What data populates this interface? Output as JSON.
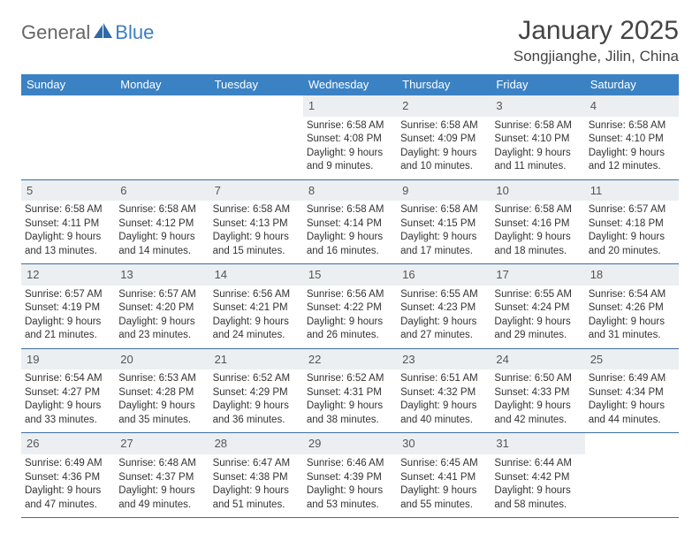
{
  "brand": {
    "part1": "General",
    "part2": "Blue"
  },
  "title": "January 2025",
  "location": "Songjianghe, Jilin, China",
  "colors": {
    "header_bg": "#3b82c4",
    "header_text": "#ffffff",
    "daynum_bg": "#eceff1",
    "row_border": "#3b6fa0",
    "text": "#333333",
    "brand_gray": "#666666",
    "brand_blue": "#3b7fc4"
  },
  "typography": {
    "title_fontsize": 30,
    "location_fontsize": 17,
    "dayheader_fontsize": 13,
    "body_fontsize": 11.5
  },
  "dayHeaders": [
    "Sunday",
    "Monday",
    "Tuesday",
    "Wednesday",
    "Thursday",
    "Friday",
    "Saturday"
  ],
  "weeks": [
    [
      {
        "num": "",
        "lines": []
      },
      {
        "num": "",
        "lines": []
      },
      {
        "num": "",
        "lines": []
      },
      {
        "num": "1",
        "lines": [
          "Sunrise: 6:58 AM",
          "Sunset: 4:08 PM",
          "Daylight: 9 hours",
          "and 9 minutes."
        ]
      },
      {
        "num": "2",
        "lines": [
          "Sunrise: 6:58 AM",
          "Sunset: 4:09 PM",
          "Daylight: 9 hours",
          "and 10 minutes."
        ]
      },
      {
        "num": "3",
        "lines": [
          "Sunrise: 6:58 AM",
          "Sunset: 4:10 PM",
          "Daylight: 9 hours",
          "and 11 minutes."
        ]
      },
      {
        "num": "4",
        "lines": [
          "Sunrise: 6:58 AM",
          "Sunset: 4:10 PM",
          "Daylight: 9 hours",
          "and 12 minutes."
        ]
      }
    ],
    [
      {
        "num": "5",
        "lines": [
          "Sunrise: 6:58 AM",
          "Sunset: 4:11 PM",
          "Daylight: 9 hours",
          "and 13 minutes."
        ]
      },
      {
        "num": "6",
        "lines": [
          "Sunrise: 6:58 AM",
          "Sunset: 4:12 PM",
          "Daylight: 9 hours",
          "and 14 minutes."
        ]
      },
      {
        "num": "7",
        "lines": [
          "Sunrise: 6:58 AM",
          "Sunset: 4:13 PM",
          "Daylight: 9 hours",
          "and 15 minutes."
        ]
      },
      {
        "num": "8",
        "lines": [
          "Sunrise: 6:58 AM",
          "Sunset: 4:14 PM",
          "Daylight: 9 hours",
          "and 16 minutes."
        ]
      },
      {
        "num": "9",
        "lines": [
          "Sunrise: 6:58 AM",
          "Sunset: 4:15 PM",
          "Daylight: 9 hours",
          "and 17 minutes."
        ]
      },
      {
        "num": "10",
        "lines": [
          "Sunrise: 6:58 AM",
          "Sunset: 4:16 PM",
          "Daylight: 9 hours",
          "and 18 minutes."
        ]
      },
      {
        "num": "11",
        "lines": [
          "Sunrise: 6:57 AM",
          "Sunset: 4:18 PM",
          "Daylight: 9 hours",
          "and 20 minutes."
        ]
      }
    ],
    [
      {
        "num": "12",
        "lines": [
          "Sunrise: 6:57 AM",
          "Sunset: 4:19 PM",
          "Daylight: 9 hours",
          "and 21 minutes."
        ]
      },
      {
        "num": "13",
        "lines": [
          "Sunrise: 6:57 AM",
          "Sunset: 4:20 PM",
          "Daylight: 9 hours",
          "and 23 minutes."
        ]
      },
      {
        "num": "14",
        "lines": [
          "Sunrise: 6:56 AM",
          "Sunset: 4:21 PM",
          "Daylight: 9 hours",
          "and 24 minutes."
        ]
      },
      {
        "num": "15",
        "lines": [
          "Sunrise: 6:56 AM",
          "Sunset: 4:22 PM",
          "Daylight: 9 hours",
          "and 26 minutes."
        ]
      },
      {
        "num": "16",
        "lines": [
          "Sunrise: 6:55 AM",
          "Sunset: 4:23 PM",
          "Daylight: 9 hours",
          "and 27 minutes."
        ]
      },
      {
        "num": "17",
        "lines": [
          "Sunrise: 6:55 AM",
          "Sunset: 4:24 PM",
          "Daylight: 9 hours",
          "and 29 minutes."
        ]
      },
      {
        "num": "18",
        "lines": [
          "Sunrise: 6:54 AM",
          "Sunset: 4:26 PM",
          "Daylight: 9 hours",
          "and 31 minutes."
        ]
      }
    ],
    [
      {
        "num": "19",
        "lines": [
          "Sunrise: 6:54 AM",
          "Sunset: 4:27 PM",
          "Daylight: 9 hours",
          "and 33 minutes."
        ]
      },
      {
        "num": "20",
        "lines": [
          "Sunrise: 6:53 AM",
          "Sunset: 4:28 PM",
          "Daylight: 9 hours",
          "and 35 minutes."
        ]
      },
      {
        "num": "21",
        "lines": [
          "Sunrise: 6:52 AM",
          "Sunset: 4:29 PM",
          "Daylight: 9 hours",
          "and 36 minutes."
        ]
      },
      {
        "num": "22",
        "lines": [
          "Sunrise: 6:52 AM",
          "Sunset: 4:31 PM",
          "Daylight: 9 hours",
          "and 38 minutes."
        ]
      },
      {
        "num": "23",
        "lines": [
          "Sunrise: 6:51 AM",
          "Sunset: 4:32 PM",
          "Daylight: 9 hours",
          "and 40 minutes."
        ]
      },
      {
        "num": "24",
        "lines": [
          "Sunrise: 6:50 AM",
          "Sunset: 4:33 PM",
          "Daylight: 9 hours",
          "and 42 minutes."
        ]
      },
      {
        "num": "25",
        "lines": [
          "Sunrise: 6:49 AM",
          "Sunset: 4:34 PM",
          "Daylight: 9 hours",
          "and 44 minutes."
        ]
      }
    ],
    [
      {
        "num": "26",
        "lines": [
          "Sunrise: 6:49 AM",
          "Sunset: 4:36 PM",
          "Daylight: 9 hours",
          "and 47 minutes."
        ]
      },
      {
        "num": "27",
        "lines": [
          "Sunrise: 6:48 AM",
          "Sunset: 4:37 PM",
          "Daylight: 9 hours",
          "and 49 minutes."
        ]
      },
      {
        "num": "28",
        "lines": [
          "Sunrise: 6:47 AM",
          "Sunset: 4:38 PM",
          "Daylight: 9 hours",
          "and 51 minutes."
        ]
      },
      {
        "num": "29",
        "lines": [
          "Sunrise: 6:46 AM",
          "Sunset: 4:39 PM",
          "Daylight: 9 hours",
          "and 53 minutes."
        ]
      },
      {
        "num": "30",
        "lines": [
          "Sunrise: 6:45 AM",
          "Sunset: 4:41 PM",
          "Daylight: 9 hours",
          "and 55 minutes."
        ]
      },
      {
        "num": "31",
        "lines": [
          "Sunrise: 6:44 AM",
          "Sunset: 4:42 PM",
          "Daylight: 9 hours",
          "and 58 minutes."
        ]
      },
      {
        "num": "",
        "lines": []
      }
    ]
  ]
}
